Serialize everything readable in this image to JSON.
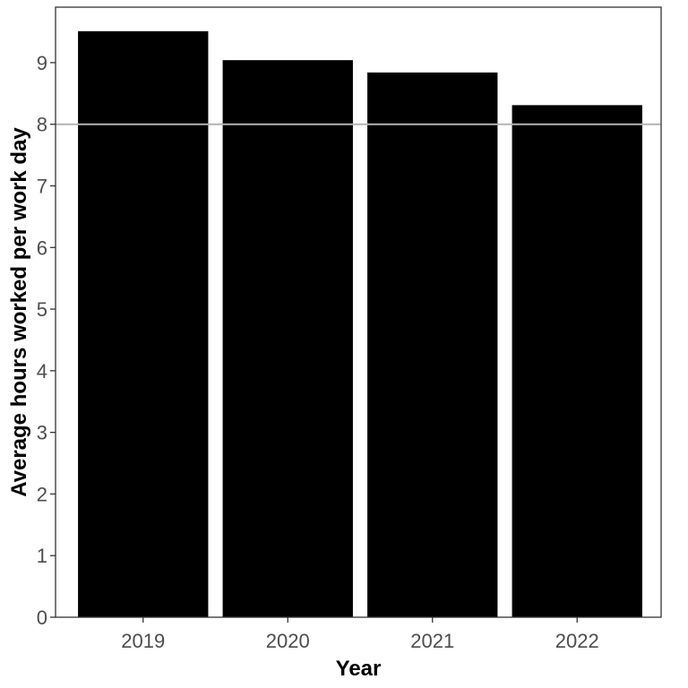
{
  "chart_data": {
    "type": "bar",
    "title": "",
    "xlabel": "Year",
    "ylabel": "Average hours worked per work day",
    "categories": [
      "2019",
      "2020",
      "2021",
      "2022"
    ],
    "values": [
      9.51,
      9.04,
      8.84,
      8.31
    ],
    "ylim": [
      0,
      9.9
    ],
    "yticks": [
      0,
      1,
      2,
      3,
      4,
      5,
      6,
      7,
      8,
      9
    ],
    "reference_line": 8,
    "grid": false,
    "legend": "none",
    "colors": {
      "bar": "#000000",
      "reference_line": "#b3b3b3",
      "panel_border": "#333333",
      "tick_label": "#4d4d4d"
    }
  }
}
